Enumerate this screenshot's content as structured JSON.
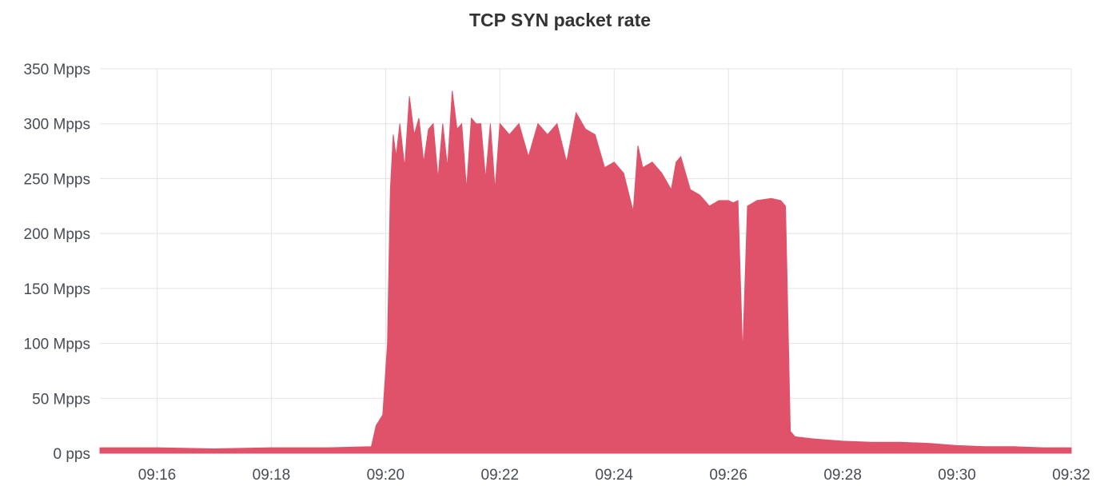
{
  "chart_data": {
    "type": "area",
    "title": "TCP SYN packet rate",
    "xlabel": "",
    "ylabel": "",
    "x_start": "09:15",
    "x_end": "09:32",
    "x_ticks": [
      "09:16",
      "09:18",
      "09:20",
      "09:22",
      "09:24",
      "09:26",
      "09:28",
      "09:30",
      "09:32"
    ],
    "y_ticks": [
      "0 pps",
      "50 Mpps",
      "100 Mpps",
      "150 Mpps",
      "200 Mpps",
      "250 Mpps",
      "300 Mpps",
      "350 Mpps"
    ],
    "ylim": [
      0,
      350
    ],
    "y_unit": "Mpps",
    "grid": true,
    "color": "#e0526a",
    "series": [
      {
        "x": [
          "09:15:00",
          "09:16:00",
          "09:17:00",
          "09:18:00",
          "09:19:00",
          "09:19:45",
          "09:19:50",
          "09:19:57",
          "09:20:02",
          "09:20:05",
          "09:20:08",
          "09:20:11",
          "09:20:15",
          "09:20:20",
          "09:20:25",
          "09:20:30",
          "09:20:35",
          "09:20:40",
          "09:20:45",
          "09:20:50",
          "09:20:55",
          "09:21:00",
          "09:21:05",
          "09:21:10",
          "09:21:15",
          "09:21:20",
          "09:21:25",
          "09:21:30",
          "09:21:35",
          "09:21:40",
          "09:21:45",
          "09:21:50",
          "09:21:55",
          "09:22:00",
          "09:22:05",
          "09:22:10",
          "09:22:20",
          "09:22:30",
          "09:22:40",
          "09:22:50",
          "09:23:00",
          "09:23:10",
          "09:23:20",
          "09:23:30",
          "09:23:40",
          "09:23:50",
          "09:24:00",
          "09:24:10",
          "09:24:20",
          "09:24:25",
          "09:24:30",
          "09:24:40",
          "09:24:50",
          "09:25:00",
          "09:25:05",
          "09:25:10",
          "09:25:20",
          "09:25:30",
          "09:25:40",
          "09:25:50",
          "09:26:00",
          "09:26:05",
          "09:26:10",
          "09:26:15",
          "09:26:20",
          "09:26:30",
          "09:26:45",
          "09:26:55",
          "09:27:00",
          "09:27:05",
          "09:27:10",
          "09:27:20",
          "09:27:30",
          "09:28:00",
          "09:28:30",
          "09:29:00",
          "09:29:30",
          "09:30:00",
          "09:30:30",
          "09:31:00",
          "09:31:30",
          "09:32:00"
        ],
        "values": [
          5,
          5,
          4,
          5,
          5,
          6,
          25,
          35,
          100,
          240,
          290,
          270,
          300,
          260,
          325,
          290,
          305,
          265,
          295,
          300,
          250,
          300,
          260,
          330,
          295,
          300,
          240,
          305,
          300,
          300,
          250,
          300,
          240,
          300,
          295,
          290,
          300,
          270,
          300,
          290,
          300,
          265,
          310,
          295,
          290,
          260,
          265,
          255,
          220,
          280,
          260,
          265,
          255,
          240,
          265,
          270,
          240,
          235,
          225,
          230,
          230,
          228,
          230,
          90,
          225,
          230,
          232,
          230,
          225,
          20,
          15,
          14,
          13,
          11,
          10,
          10,
          9,
          7,
          6,
          6,
          5,
          5
        ]
      }
    ]
  }
}
